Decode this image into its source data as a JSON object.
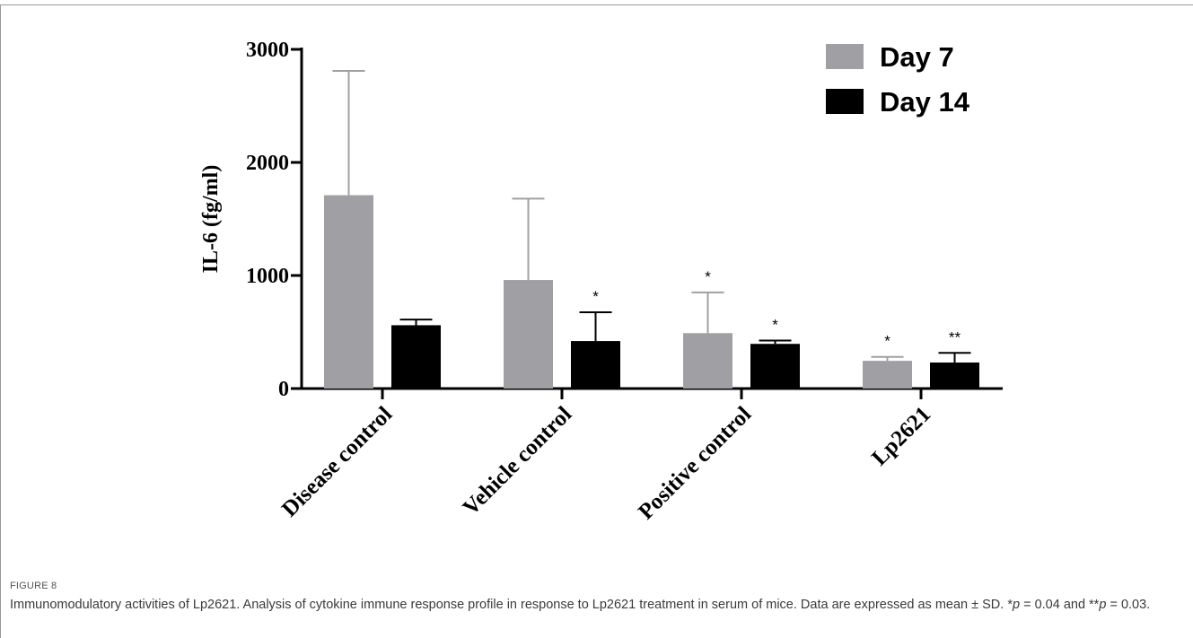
{
  "figure": {
    "label": "FIGURE 8",
    "caption_parts": [
      {
        "text": "Immunomodulatory activities of Lp2621. Analysis of cytokine immune response profile in response to Lp2621 treatment in serum of mice. Data are expressed as mean ± SD. *",
        "italic": false
      },
      {
        "text": "p",
        "italic": true
      },
      {
        "text": " = 0.04 and **",
        "italic": false
      },
      {
        "text": "p",
        "italic": true
      },
      {
        "text": " = 0.03.",
        "italic": false
      }
    ]
  },
  "chart_data": {
    "type": "bar",
    "title": "",
    "xlabel": "",
    "ylabel": "IL-6 (fg/ml)",
    "ylim": [
      0,
      3000
    ],
    "yticks": [
      0,
      1000,
      2000,
      3000
    ],
    "categories": [
      "Disease control",
      "Vehicle control",
      "Positive control",
      "Lp2621"
    ],
    "series": [
      {
        "name": "Day 7",
        "color": "#a0a0a4",
        "values": [
          1710,
          960,
          490,
          245
        ],
        "error_upper": [
          2810,
          1680,
          850,
          280
        ],
        "significance": [
          "",
          "",
          "*",
          "*"
        ]
      },
      {
        "name": "Day 14",
        "color": "#000000",
        "values": [
          560,
          420,
          395,
          230
        ],
        "error_upper": [
          610,
          675,
          425,
          315
        ],
        "significance": [
          "",
          "*",
          "*",
          "**"
        ]
      }
    ],
    "legend_position": "top-right",
    "grid": false,
    "error_bars": "upper SD only"
  }
}
